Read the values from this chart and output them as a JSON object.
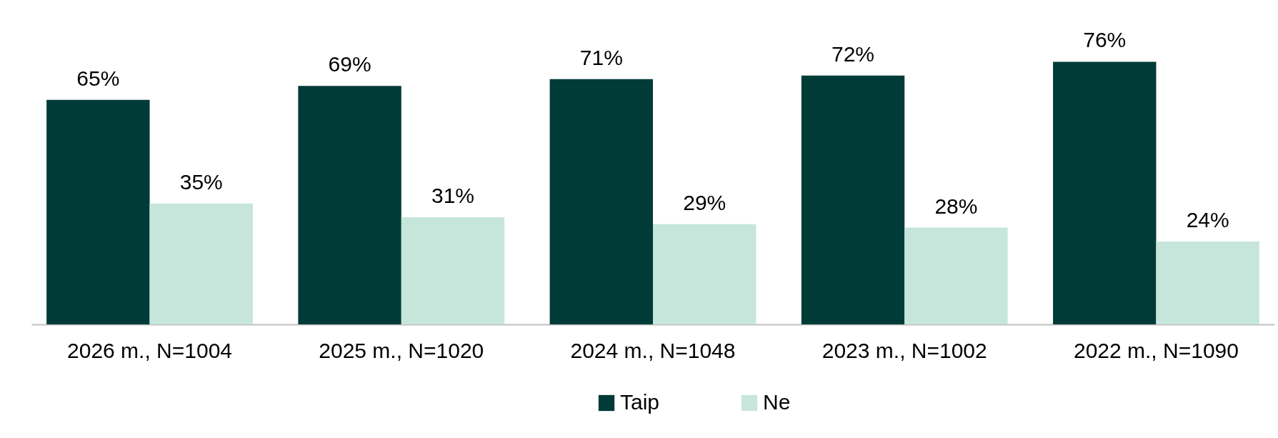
{
  "chart_data": {
    "type": "bar",
    "categories": [
      "2026 m., N=1004",
      "2025 m., N=1020",
      "2024 m., N=1048",
      "2023 m., N=1002",
      "2022 m., N=1090"
    ],
    "series": [
      {
        "name": "Taip",
        "color": "#003b38",
        "values": [
          65,
          69,
          71,
          72,
          76
        ],
        "value_labels": [
          "65%",
          "69%",
          "71%",
          "72%",
          "76%"
        ]
      },
      {
        "name": "Ne",
        "color": "#c6e6dc",
        "values": [
          35,
          31,
          29,
          28,
          24
        ],
        "value_labels": [
          "35%",
          "31%",
          "29%",
          "28%",
          "24%"
        ]
      }
    ],
    "legend": "bottom"
  }
}
